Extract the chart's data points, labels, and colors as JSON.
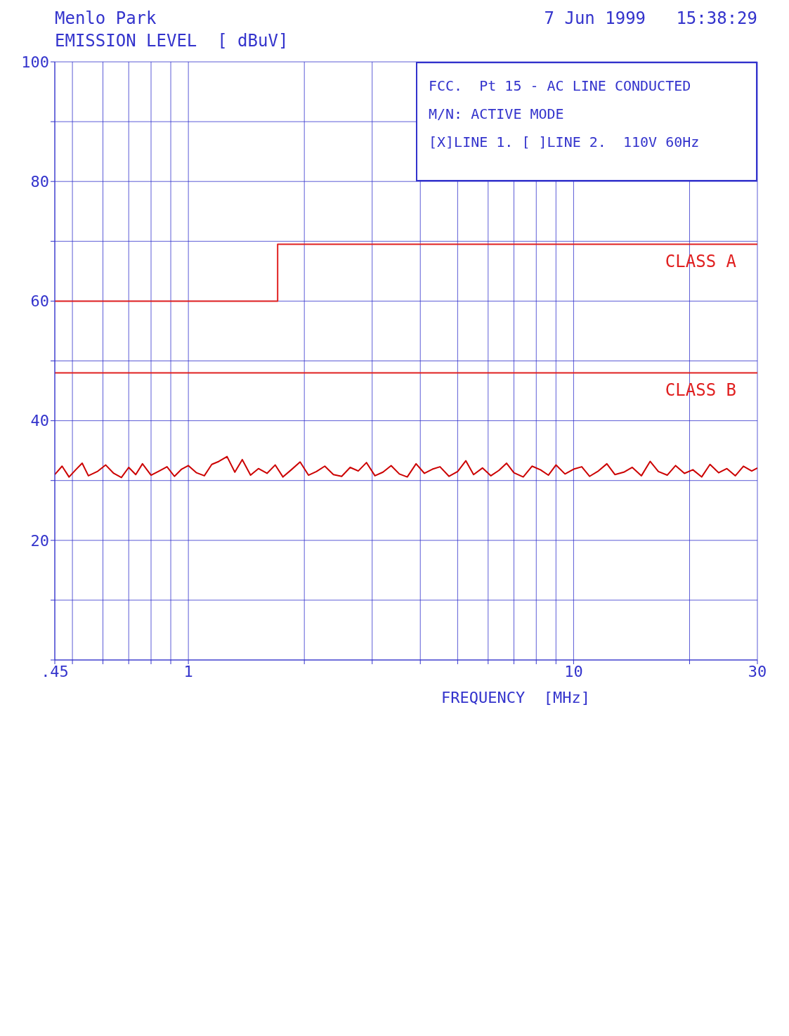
{
  "chart_data": {
    "type": "line",
    "title": "7 Jun 1999   15:38:29",
    "xlabel": "FREQUENCY  [MHz]",
    "ylabel": "EMISSION LEVEL  [ dBuV]",
    "annotations": [
      "Menlo Park",
      "FCC.  Pt 15 - AC LINE CONDUCTED",
      "M/N: ACTIVE MODE",
      "[X]LINE 1. [ ]LINE 2.  110V 60Hz"
    ],
    "log": "x",
    "grid": true,
    "xlim": [
      0.45,
      30
    ],
    "xticks": [
      {
        "value": 0.45,
        "label": ".45"
      },
      {
        "value": 0.5,
        "label": null
      },
      {
        "value": 0.6,
        "label": null
      },
      {
        "value": 0.7,
        "label": null
      },
      {
        "value": 0.8,
        "label": null
      },
      {
        "value": 0.9,
        "label": null
      },
      1,
      {
        "value": 2,
        "label": null
      },
      {
        "value": 3,
        "label": null
      },
      {
        "value": 4,
        "label": null
      },
      {
        "value": 5,
        "label": null
      },
      {
        "value": 6,
        "label": null
      },
      {
        "value": 7,
        "label": null
      },
      {
        "value": 8,
        "label": null
      },
      {
        "value": 9,
        "label": null
      },
      10,
      {
        "value": 20,
        "label": null
      },
      30
    ],
    "ylim": [
      0,
      100
    ],
    "yticks": [
      {
        "value": 0,
        "label": null
      },
      {
        "value": 10,
        "label": null
      },
      20,
      {
        "value": 30,
        "label": null
      },
      40,
      {
        "value": 50,
        "label": null
      },
      60,
      {
        "value": 70,
        "label": null
      },
      80,
      {
        "value": 90,
        "label": null
      },
      100
    ],
    "series": [
      {
        "name": "CLASS A",
        "type": "step",
        "color": "#e02020",
        "x": [
          0.45,
          1.705,
          30
        ],
        "values": [
          60,
          69.5,
          69.5
        ]
      },
      {
        "name": "CLASS B",
        "type": "line",
        "color": "#e02020",
        "x": [
          0.45,
          30
        ],
        "values": [
          48,
          48
        ]
      },
      {
        "type": "line",
        "color": "#cc0000",
        "x": [
          0.45,
          0.47,
          0.49,
          0.51,
          0.53,
          0.55,
          0.58,
          0.61,
          0.64,
          0.67,
          0.7,
          0.73,
          0.76,
          0.8,
          0.84,
          0.88,
          0.92,
          0.96,
          1.0,
          1.05,
          1.1,
          1.15,
          1.2,
          1.26,
          1.32,
          1.38,
          1.45,
          1.52,
          1.6,
          1.68,
          1.76,
          1.85,
          1.95,
          2.05,
          2.15,
          2.26,
          2.38,
          2.5,
          2.63,
          2.76,
          2.9,
          3.05,
          3.2,
          3.36,
          3.53,
          3.7,
          3.9,
          4.1,
          4.3,
          4.5,
          4.75,
          5.0,
          5.25,
          5.5,
          5.8,
          6.1,
          6.4,
          6.7,
          7.0,
          7.4,
          7.8,
          8.2,
          8.6,
          9.0,
          9.5,
          10,
          10.5,
          11,
          11.6,
          12.2,
          12.8,
          13.5,
          14.2,
          15,
          15.8,
          16.6,
          17.5,
          18.4,
          19.4,
          20.4,
          21.5,
          22.6,
          23.8,
          25,
          26.3,
          27.6,
          29,
          30
        ],
        "values": [
          31.0,
          32.4,
          30.6,
          31.8,
          32.9,
          30.8,
          31.5,
          32.6,
          31.2,
          30.5,
          32.2,
          31.0,
          32.8,
          30.9,
          31.6,
          32.3,
          30.7,
          31.9,
          32.5,
          31.3,
          30.8,
          32.7,
          33.2,
          34.0,
          31.4,
          33.5,
          30.9,
          32.0,
          31.2,
          32.6,
          30.6,
          31.8,
          33.1,
          30.9,
          31.5,
          32.4,
          31.0,
          30.7,
          32.2,
          31.6,
          33.0,
          30.8,
          31.4,
          32.5,
          31.1,
          30.6,
          32.8,
          31.2,
          31.9,
          32.3,
          30.7,
          31.5,
          33.3,
          31.0,
          32.1,
          30.8,
          31.7,
          32.9,
          31.3,
          30.6,
          32.4,
          31.8,
          30.9,
          32.6,
          31.1,
          31.9,
          32.3,
          30.7,
          31.6,
          32.8,
          31.0,
          31.4,
          32.2,
          30.8,
          33.2,
          31.5,
          30.9,
          32.5,
          31.2,
          31.8,
          30.6,
          32.7,
          31.3,
          32.0,
          30.8,
          32.4,
          31.6,
          32.1
        ]
      }
    ]
  }
}
